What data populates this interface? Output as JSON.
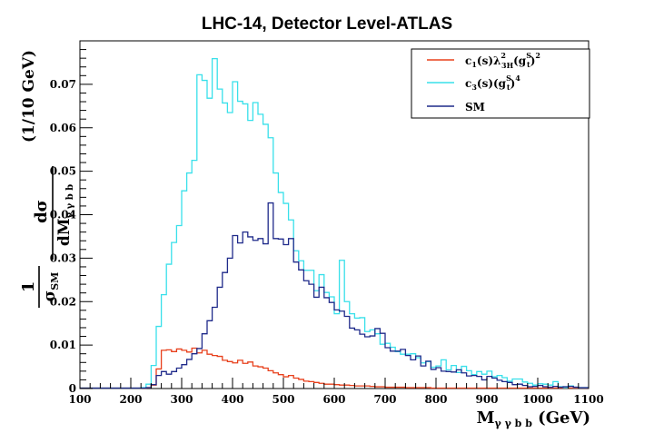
{
  "chart_data": {
    "type": "line",
    "step_histogram": true,
    "title": "LHC-14, Detector Level-ATLAS",
    "xlabel": {
      "main": "M",
      "sub": "γ γ b b",
      "unit": " (GeV)"
    },
    "ylabel": {
      "bin_label": "(1/10 GeV)",
      "frac1_num": "1",
      "frac1_den_main": "σ",
      "frac1_den_sub": "SM",
      "frac2_num": "dσ",
      "frac2_den_main": "dM",
      "frac2_den_sub": "γ γ b b"
    },
    "xlim": [
      100,
      1100
    ],
    "ylim": [
      0,
      0.08
    ],
    "bin_width": 10,
    "x_ticks": [
      "100",
      "200",
      "300",
      "400",
      "500",
      "600",
      "700",
      "800",
      "900",
      "1000",
      "1100"
    ],
    "y_ticks": [
      "0",
      "0.01",
      "0.02",
      "0.03",
      "0.04",
      "0.05",
      "0.06",
      "0.07"
    ],
    "x_tick_values": [
      100,
      200,
      300,
      400,
      500,
      600,
      700,
      800,
      900,
      1000,
      1100
    ],
    "y_tick_values": [
      0,
      0.01,
      0.02,
      0.03,
      0.04,
      0.05,
      0.06,
      0.07
    ],
    "legend": {
      "position": "top-right",
      "entries": [
        {
          "main": "c",
          "sub1": "1",
          "mid": "(s)λ",
          "sup2": "2",
          "sub2": "3H",
          "rest": "(g",
          "sup3": "S",
          "sub3": "t",
          "end": ")",
          "sup4": "2",
          "color": "#e8401c"
        },
        {
          "main": "c",
          "sub1": "3",
          "mid": "(s)(g",
          "sup2": "S",
          "sub2": "t",
          "rest": ")",
          "sup3": "4",
          "sub3": "",
          "end": "",
          "sup4": "",
          "color": "#38e0ea"
        },
        {
          "main": "SM",
          "sub1": "",
          "mid": "",
          "sup2": "",
          "sub2": "",
          "rest": "",
          "sup3": "",
          "sub3": "",
          "end": "",
          "sup4": "",
          "color": "#1f2a8a"
        }
      ]
    },
    "series": [
      {
        "color": "#e8401c",
        "bin_start": 100,
        "values": [
          0.0001,
          0.0001,
          0.0001,
          0.0001,
          0.0001,
          0.0001,
          0.0001,
          0.0001,
          0.0001,
          0.0001,
          0.0001,
          0.0001,
          0.0001,
          0.0002,
          0.0008,
          0.0045,
          0.0088,
          0.0089,
          0.0085,
          0.0091,
          0.0088,
          0.0084,
          0.0093,
          0.0082,
          0.0088,
          0.0079,
          0.0076,
          0.0074,
          0.0065,
          0.0062,
          0.0059,
          0.0065,
          0.0058,
          0.0061,
          0.0052,
          0.005,
          0.0047,
          0.0041,
          0.0036,
          0.0032,
          0.0027,
          0.003,
          0.0024,
          0.0021,
          0.0017,
          0.0016,
          0.0014,
          0.0012,
          0.001,
          0.001,
          0.0009,
          0.0008,
          0.0008,
          0.0007,
          0.0006,
          0.0006,
          0.0006,
          0.0005,
          0.0004,
          0.0004,
          0.0003,
          0.0003,
          0.0003,
          0.0003,
          0.0002,
          0.0002,
          0.0002,
          0.0002,
          0.0002,
          0.0001,
          0.0001,
          0.0001,
          0.0001,
          0.0001,
          0.0001,
          0.0001,
          0.0001,
          0.0001,
          0.0001,
          0.0001,
          0.0001,
          0.0001,
          0.0001,
          0.0001,
          0.0001,
          0.0001,
          0.0001,
          0.0001,
          0.0001,
          0.0001,
          0.0001,
          0.0001,
          0.0001,
          0.0001,
          0.0001,
          0.0001,
          0.0001,
          0.0001,
          0.0001,
          0.0001
        ]
      },
      {
        "color": "#38e0ea",
        "bin_start": 100,
        "values": [
          0.0001,
          0.0001,
          0.0001,
          0.0001,
          0.0001,
          0.0001,
          0.0001,
          0.0001,
          0.0001,
          0.0001,
          0.0001,
          0.0001,
          0.0002,
          0.001,
          0.0053,
          0.0143,
          0.0216,
          0.0286,
          0.0336,
          0.0375,
          0.0455,
          0.0496,
          0.0525,
          0.0722,
          0.0709,
          0.0668,
          0.0759,
          0.0689,
          0.0657,
          0.0635,
          0.0706,
          0.0661,
          0.0655,
          0.0617,
          0.0658,
          0.0631,
          0.0608,
          0.0577,
          0.0496,
          0.0451,
          0.0426,
          0.0388,
          0.0317,
          0.0294,
          0.0272,
          0.0272,
          0.0225,
          0.0262,
          0.0221,
          0.0211,
          0.0172,
          0.0295,
          0.02,
          0.0172,
          0.0162,
          0.0163,
          0.0131,
          0.0135,
          0.0126,
          0.0102,
          0.0104,
          0.0095,
          0.0085,
          0.0079,
          0.0079,
          0.008,
          0.0071,
          0.0059,
          0.0062,
          0.0049,
          0.0052,
          0.0066,
          0.0043,
          0.0053,
          0.0037,
          0.0051,
          0.0041,
          0.0032,
          0.0039,
          0.0033,
          0.004,
          0.0027,
          0.003,
          0.0025,
          0.0017,
          0.0022,
          0.0022,
          0.0015,
          0.0012,
          0.0008,
          0.0011,
          0.001,
          0.0008,
          0.0016,
          0.0004,
          0.0002,
          0.0006,
          0.0003,
          0.0002,
          0.0002
        ]
      },
      {
        "color": "#1f2a8a",
        "bin_start": 100,
        "values": [
          0.0001,
          0.0001,
          0.0001,
          0.0001,
          0.0001,
          0.0001,
          0.0001,
          0.0001,
          0.0001,
          0.0001,
          0.0001,
          0.0001,
          0.0001,
          0.0002,
          0.0009,
          0.003,
          0.0039,
          0.0033,
          0.0039,
          0.0047,
          0.0055,
          0.0067,
          0.008,
          0.0092,
          0.0126,
          0.0156,
          0.0187,
          0.0233,
          0.0267,
          0.03,
          0.0352,
          0.0335,
          0.036,
          0.0349,
          0.0341,
          0.0345,
          0.0333,
          0.0427,
          0.0345,
          0.0344,
          0.0331,
          0.0345,
          0.0291,
          0.0273,
          0.0248,
          0.024,
          0.021,
          0.0233,
          0.0209,
          0.0198,
          0.0181,
          0.0178,
          0.0166,
          0.0139,
          0.0135,
          0.0125,
          0.0119,
          0.0121,
          0.0138,
          0.0127,
          0.0094,
          0.0086,
          0.0086,
          0.009,
          0.0076,
          0.0066,
          0.0075,
          0.0052,
          0.0063,
          0.0044,
          0.0048,
          0.004,
          0.0039,
          0.0038,
          0.0043,
          0.0036,
          0.0029,
          0.003,
          0.0028,
          0.002,
          0.0028,
          0.0024,
          0.0019,
          0.0016,
          0.0014,
          0.0009,
          0.001,
          0.0007,
          0.0004,
          0.0005,
          0.0007,
          0.0004,
          0.0003,
          0.0005,
          0.0003,
          0.0004,
          0.0005,
          0.0003,
          0.0002,
          0.0002
        ]
      }
    ]
  }
}
